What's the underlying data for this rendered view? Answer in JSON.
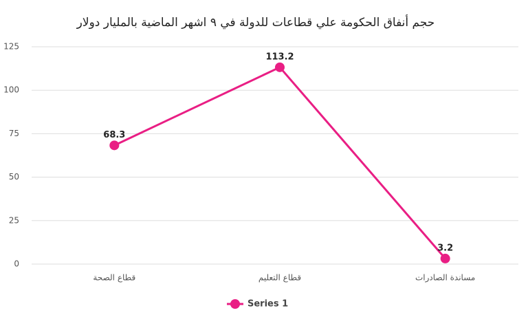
{
  "chart_data": {
    "type": "line",
    "title": "حجم أنفاق الحكومة علي قطاعات للدولة في ٩ اشهر الماضية بالمليار دولار",
    "categories": [
      "قطاع الصحة",
      "قطاع التعليم",
      "مساندة الصادرات"
    ],
    "series": [
      {
        "name": "Series 1",
        "color": "#e91e84",
        "values": [
          68.3,
          113.2,
          3.2
        ]
      }
    ],
    "ylim": [
      0,
      125
    ],
    "yticks": [
      0,
      25,
      50,
      75,
      100,
      125
    ],
    "grid": true,
    "legend": "bottom"
  }
}
